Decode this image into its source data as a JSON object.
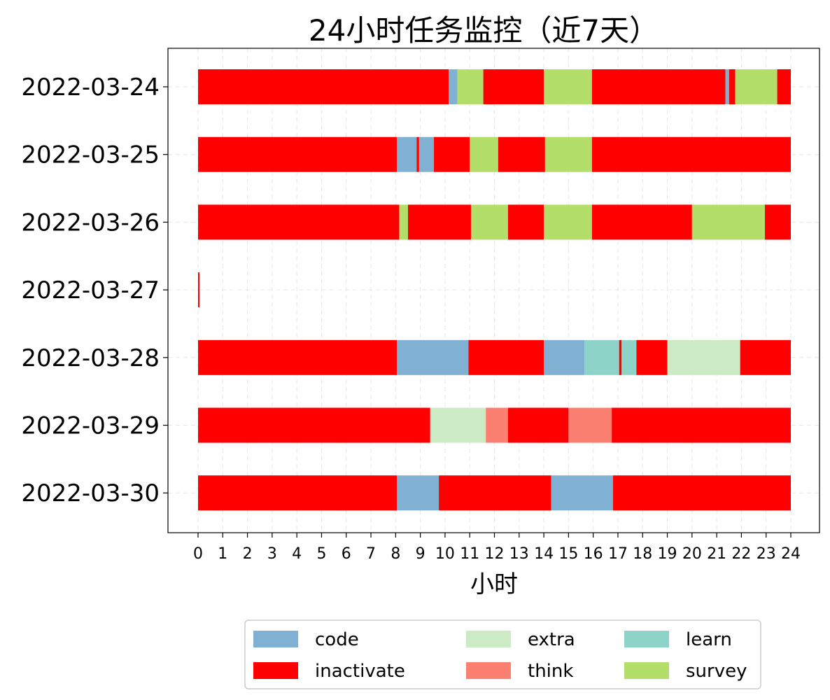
{
  "chart_data": {
    "type": "bar",
    "orientation": "horizontal-stacked-timeline",
    "title": "24小时任务监控（近7天）",
    "xlabel": "小时",
    "ylabel": "",
    "xlim": [
      -1.2,
      25.2
    ],
    "xticks": [
      0,
      1,
      2,
      3,
      4,
      5,
      6,
      7,
      8,
      9,
      10,
      11,
      12,
      13,
      14,
      15,
      16,
      17,
      18,
      19,
      20,
      21,
      22,
      23,
      24
    ],
    "grid": true,
    "legend_position": "bottom-center",
    "categories": [
      "2022-03-24",
      "2022-03-25",
      "2022-03-26",
      "2022-03-27",
      "2022-03-28",
      "2022-03-29",
      "2022-03-30"
    ],
    "colors": {
      "code": "#80b1d3",
      "inactivate": "#ff0000",
      "extra": "#ccebc5",
      "think": "#fb8072",
      "learn": "#8dd3c7",
      "survey": "#b3de69"
    },
    "legend": [
      "code",
      "inactivate",
      "extra",
      "think",
      "learn",
      "survey"
    ],
    "segments": [
      [
        {
          "task": "inactivate",
          "start": 0,
          "end": 10.15
        },
        {
          "task": "code",
          "start": 10.15,
          "end": 10.5
        },
        {
          "task": "survey",
          "start": 10.5,
          "end": 11.55
        },
        {
          "task": "inactivate",
          "start": 11.55,
          "end": 14.0
        },
        {
          "task": "survey",
          "start": 14.0,
          "end": 15.95
        },
        {
          "task": "inactivate",
          "start": 15.95,
          "end": 21.35
        },
        {
          "task": "code",
          "start": 21.35,
          "end": 21.5
        },
        {
          "task": "inactivate",
          "start": 21.5,
          "end": 21.75
        },
        {
          "task": "survey",
          "start": 21.75,
          "end": 23.45
        },
        {
          "task": "inactivate",
          "start": 23.45,
          "end": 24.0
        }
      ],
      [
        {
          "task": "inactivate",
          "start": 0,
          "end": 8.05
        },
        {
          "task": "code",
          "start": 8.05,
          "end": 8.85
        },
        {
          "task": "inactivate",
          "start": 8.85,
          "end": 8.95
        },
        {
          "task": "code",
          "start": 8.95,
          "end": 9.55
        },
        {
          "task": "inactivate",
          "start": 9.55,
          "end": 11.0
        },
        {
          "task": "survey",
          "start": 11.0,
          "end": 12.15
        },
        {
          "task": "inactivate",
          "start": 12.15,
          "end": 14.05
        },
        {
          "task": "survey",
          "start": 14.05,
          "end": 15.95
        },
        {
          "task": "inactivate",
          "start": 15.95,
          "end": 24.0
        }
      ],
      [
        {
          "task": "inactivate",
          "start": 0,
          "end": 8.15
        },
        {
          "task": "survey",
          "start": 8.15,
          "end": 8.5
        },
        {
          "task": "inactivate",
          "start": 8.5,
          "end": 11.05
        },
        {
          "task": "survey",
          "start": 11.05,
          "end": 12.55
        },
        {
          "task": "inactivate",
          "start": 12.55,
          "end": 14.0
        },
        {
          "task": "survey",
          "start": 14.0,
          "end": 15.95
        },
        {
          "task": "inactivate",
          "start": 15.95,
          "end": 20.0
        },
        {
          "task": "survey",
          "start": 20.0,
          "end": 22.95
        },
        {
          "task": "inactivate",
          "start": 22.95,
          "end": 24.0
        }
      ],
      [
        {
          "task": "inactivate",
          "start": 0,
          "end": 0.05
        }
      ],
      [
        {
          "task": "inactivate",
          "start": 0,
          "end": 8.05
        },
        {
          "task": "code",
          "start": 8.05,
          "end": 10.95
        },
        {
          "task": "inactivate",
          "start": 10.95,
          "end": 14.0
        },
        {
          "task": "code",
          "start": 14.0,
          "end": 15.65
        },
        {
          "task": "learn",
          "start": 15.65,
          "end": 17.05
        },
        {
          "task": "inactivate",
          "start": 17.05,
          "end": 17.15
        },
        {
          "task": "learn",
          "start": 17.15,
          "end": 17.75
        },
        {
          "task": "inactivate",
          "start": 17.75,
          "end": 19.0
        },
        {
          "task": "extra",
          "start": 19.0,
          "end": 21.95
        },
        {
          "task": "inactivate",
          "start": 21.95,
          "end": 24.0
        }
      ],
      [
        {
          "task": "inactivate",
          "start": 0,
          "end": 9.4
        },
        {
          "task": "extra",
          "start": 9.4,
          "end": 11.65
        },
        {
          "task": "think",
          "start": 11.65,
          "end": 12.55
        },
        {
          "task": "inactivate",
          "start": 12.55,
          "end": 15.0
        },
        {
          "task": "think",
          "start": 15.0,
          "end": 16.75
        },
        {
          "task": "inactivate",
          "start": 16.75,
          "end": 24.0
        }
      ],
      [
        {
          "task": "inactivate",
          "start": 0,
          "end": 8.05
        },
        {
          "task": "code",
          "start": 8.05,
          "end": 9.75
        },
        {
          "task": "inactivate",
          "start": 9.75,
          "end": 14.3
        },
        {
          "task": "code",
          "start": 14.3,
          "end": 16.8
        },
        {
          "task": "inactivate",
          "start": 16.8,
          "end": 24.0
        }
      ]
    ]
  }
}
